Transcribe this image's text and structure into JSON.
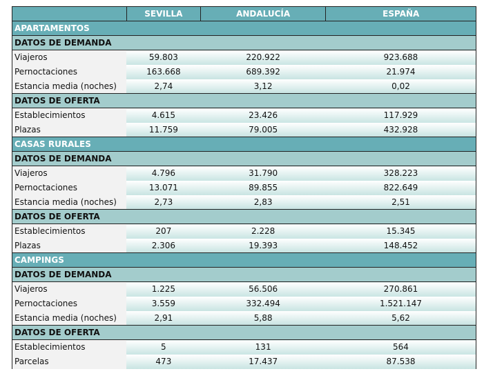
{
  "columns": [
    "",
    "SEVILLA",
    "ANDALUCÍA",
    "ESPAÑA"
  ],
  "colors": {
    "header": "#67aeb6",
    "subheader": "#a3cccc",
    "label_bg": "#f2f2f2",
    "value_bg_bottom": "#c8e4e2"
  },
  "sections": [
    {
      "title": "APARTAMENTOS",
      "groups": [
        {
          "title": "DATOS DE DEMANDA",
          "rows": [
            {
              "label": "Viajeros",
              "values": [
                "59.803",
                "220.922",
                "923.688"
              ]
            },
            {
              "label": "Pernoctaciones",
              "values": [
                "163.668",
                "689.392",
                "21.974"
              ]
            },
            {
              "label": "Estancia media (noches)",
              "values": [
                "2,74",
                "3,12",
                "0,02"
              ]
            }
          ]
        },
        {
          "title": "DATOS DE OFERTA",
          "rows": [
            {
              "label": "Establecimientos",
              "values": [
                "4.615",
                "23.426",
                "117.929"
              ]
            },
            {
              "label": "Plazas",
              "values": [
                "11.759",
                "79.005",
                "432.928"
              ]
            }
          ]
        }
      ]
    },
    {
      "title": "CASAS RURALES",
      "groups": [
        {
          "title": "DATOS DE DEMANDA",
          "rows": [
            {
              "label": "Viajeros",
              "values": [
                "4.796",
                "31.790",
                "328.223"
              ]
            },
            {
              "label": "Pernoctaciones",
              "values": [
                "13.071",
                "89.855",
                "822.649"
              ]
            },
            {
              "label": "Estancia media (noches)",
              "values": [
                "2,73",
                "2,83",
                "2,51"
              ]
            }
          ]
        },
        {
          "title": "DATOS DE OFERTA",
          "rows": [
            {
              "label": "Establecimientos",
              "values": [
                "207",
                "2.228",
                "15.345"
              ]
            },
            {
              "label": "Plazas",
              "values": [
                "2.306",
                "19.393",
                "148.452"
              ]
            }
          ]
        }
      ]
    },
    {
      "title": "CAMPINGS",
      "groups": [
        {
          "title": "DATOS DE DEMANDA",
          "rows": [
            {
              "label": "Viajeros",
              "values": [
                "1.225",
                "56.506",
                "270.861"
              ]
            },
            {
              "label": "Pernoctaciones",
              "values": [
                "3.559",
                "332.494",
                "1.521.147"
              ]
            },
            {
              "label": "Estancia media (noches)",
              "values": [
                "2,91",
                "5,88",
                "5,62"
              ]
            }
          ]
        },
        {
          "title": "DATOS DE OFERTA",
          "rows": [
            {
              "label": "Establecimientos",
              "values": [
                "5",
                "131",
                "564"
              ]
            },
            {
              "label": "Parcelas",
              "values": [
                "473",
                "17.437",
                "87.538"
              ]
            }
          ]
        }
      ]
    }
  ]
}
